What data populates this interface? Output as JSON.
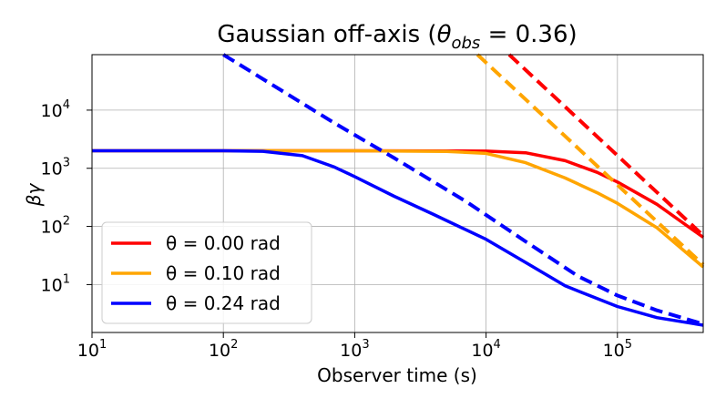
{
  "chart_data": {
    "type": "line",
    "title": "Gaussian off-axis (θobs = 0.36)",
    "title_parts": {
      "prefix": "Gaussian off-axis (",
      "symbol": "θ",
      "subscript": "obs",
      "suffix": " = 0.36)"
    },
    "xlabel": "Observer time (s)",
    "ylabel": "βγ",
    "x_scale": "log",
    "y_scale": "log",
    "xlim": [
      10,
      450000
    ],
    "ylim": [
      1.5,
      90000
    ],
    "grid": true,
    "legend_position": "lower-left",
    "x_ticks": [
      {
        "base": "10",
        "exp": "1",
        "value": 10
      },
      {
        "base": "10",
        "exp": "2",
        "value": 100
      },
      {
        "base": "10",
        "exp": "3",
        "value": 1000
      },
      {
        "base": "10",
        "exp": "4",
        "value": 10000
      },
      {
        "base": "10",
        "exp": "5",
        "value": 100000
      }
    ],
    "y_ticks": [
      {
        "base": "10",
        "exp": "1",
        "value": 10
      },
      {
        "base": "10",
        "exp": "2",
        "value": 100
      },
      {
        "base": "10",
        "exp": "3",
        "value": 1000
      },
      {
        "base": "10",
        "exp": "4",
        "value": 10000
      }
    ],
    "series": [
      {
        "name": "θ =  0.00 rad",
        "color": "#ff0000",
        "style": "solid",
        "x": [
          10,
          100,
          1000,
          5000,
          10000,
          20000,
          40000,
          70000,
          100000,
          200000,
          450000
        ],
        "y": [
          2000,
          2000,
          2000,
          1990,
          1970,
          1850,
          1350,
          850,
          580,
          240,
          65
        ]
      },
      {
        "name": "θ =  0.10 rad",
        "color": "#ffa500",
        "style": "solid",
        "x": [
          10,
          100,
          1000,
          5000,
          10000,
          20000,
          40000,
          70000,
          100000,
          200000,
          450000
        ],
        "y": [
          2000,
          2000,
          2000,
          1950,
          1800,
          1250,
          680,
          380,
          250,
          95,
          20
        ]
      },
      {
        "name": "θ =  0.24 rad",
        "color": "#0000ff",
        "style": "solid",
        "x": [
          10,
          100,
          200,
          400,
          700,
          1000,
          2000,
          4000,
          10000,
          20000,
          40000,
          100000,
          200000,
          450000
        ],
        "y": [
          2000,
          2000,
          1960,
          1650,
          1050,
          720,
          330,
          160,
          60,
          24,
          9.5,
          4.2,
          2.7,
          2.0
        ]
      },
      {
        "color": "#ff0000",
        "style": "dashed",
        "x": [
          15000,
          450000
        ],
        "y": [
          90000,
          70
        ]
      },
      {
        "color": "#ffa500",
        "style": "dashed",
        "x": [
          8600,
          450000
        ],
        "y": [
          90000,
          22
        ]
      },
      {
        "color": "#0000ff",
        "style": "dashed",
        "x": [
          100,
          700,
          2000,
          7000,
          20000,
          50000,
          100000,
          200000,
          450000
        ],
        "y": [
          90000,
          6000,
          1500,
          270,
          55,
          14,
          6.5,
          3.6,
          2.1
        ]
      }
    ]
  }
}
